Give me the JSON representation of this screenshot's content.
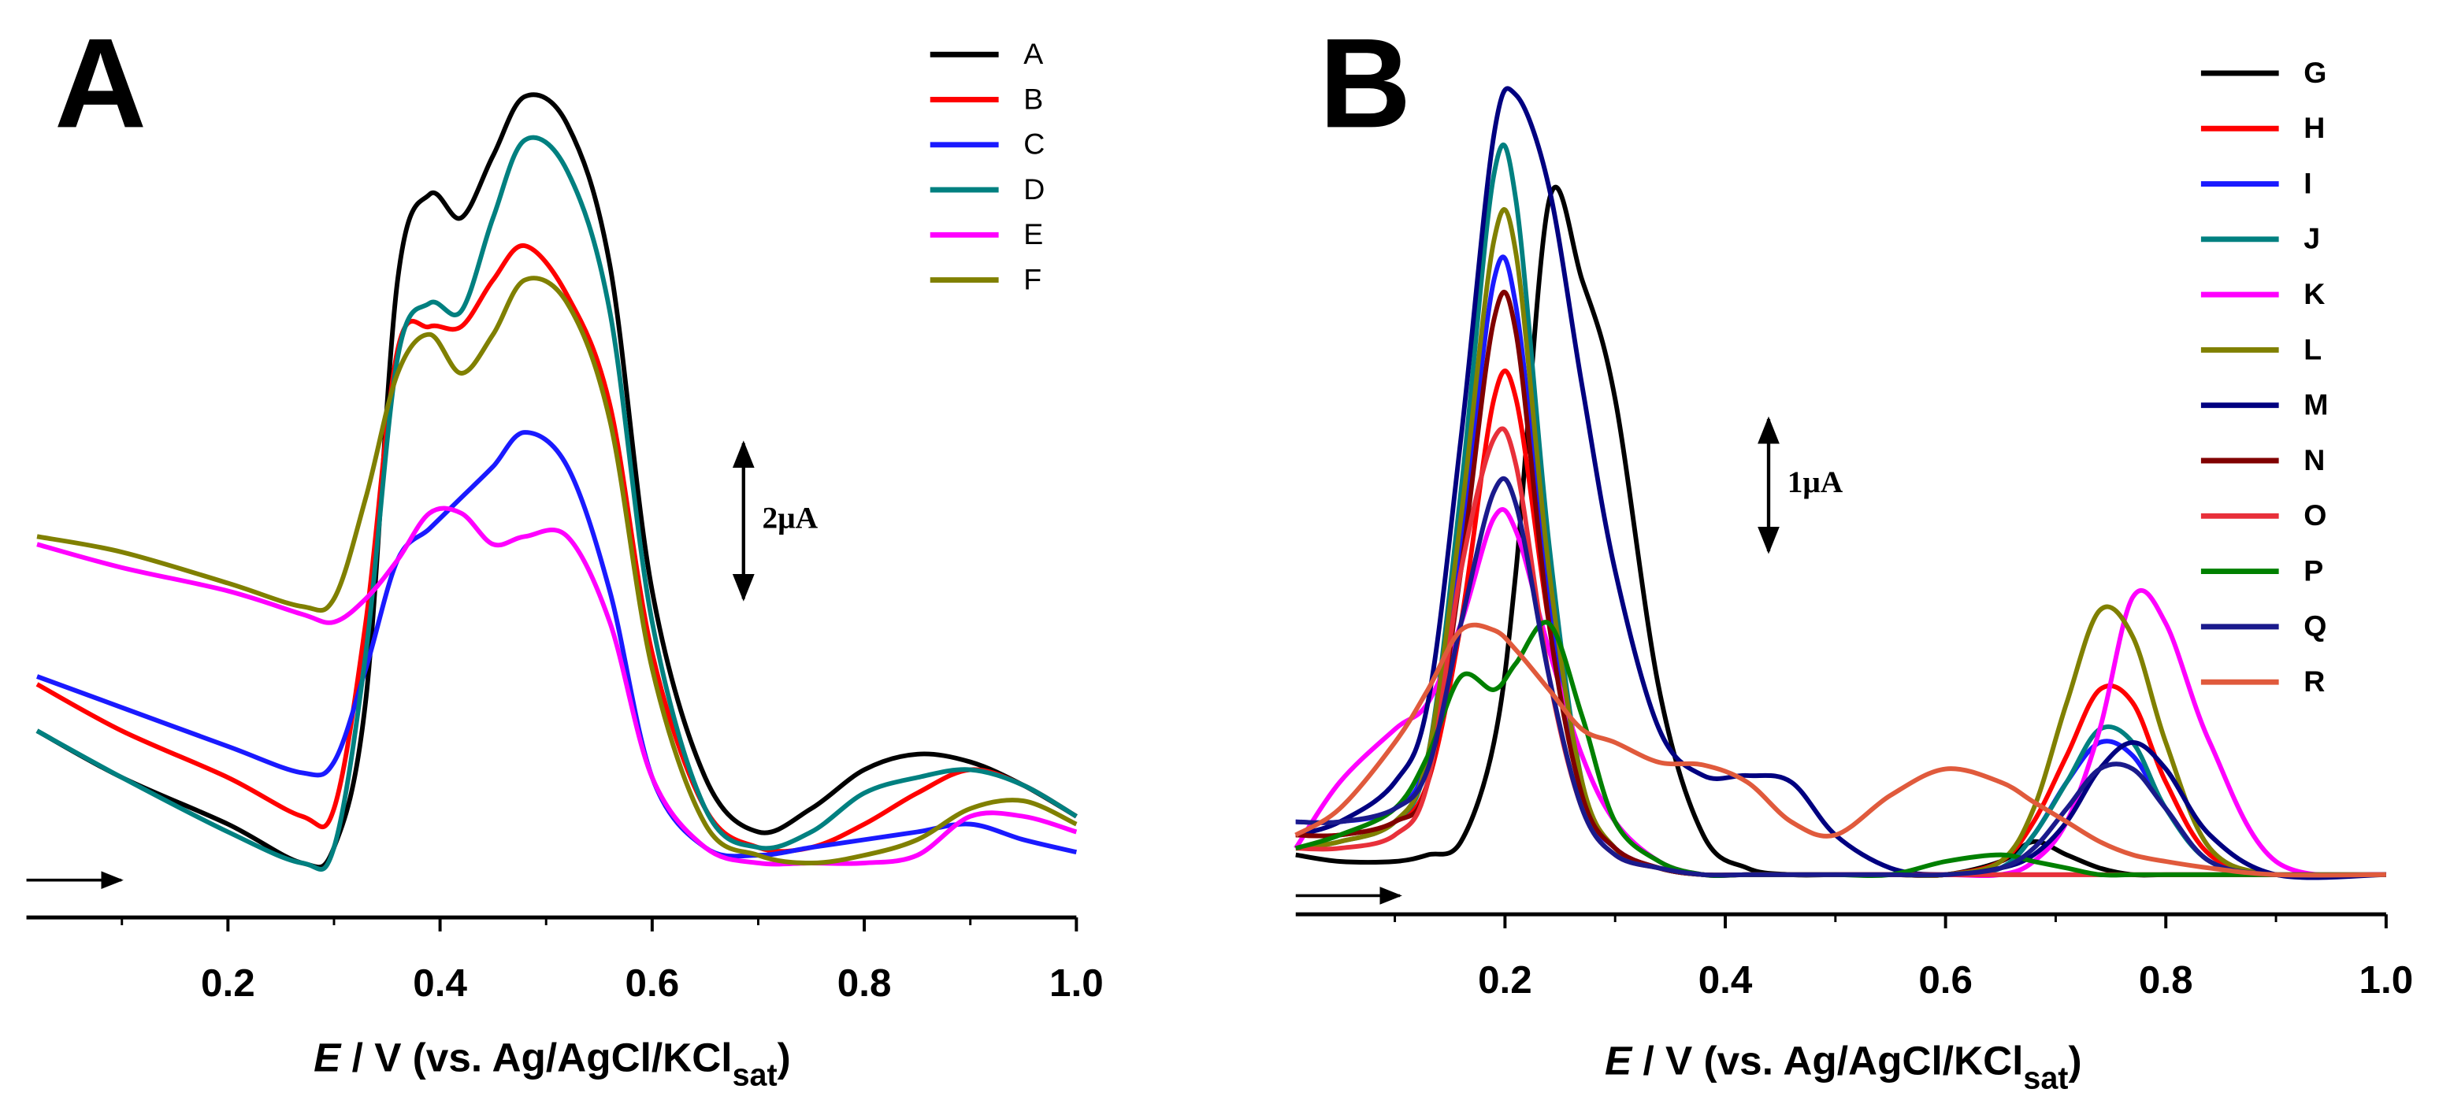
{
  "chart_data": [
    {
      "type": "line",
      "panel_label": "A",
      "x": [
        0.02,
        0.1,
        0.2,
        0.27,
        0.3,
        0.33,
        0.36,
        0.39,
        0.42,
        0.45,
        0.48,
        0.52,
        0.56,
        0.6,
        0.65,
        0.7,
        0.75,
        0.8,
        0.85,
        0.9,
        0.95,
        1.0
      ],
      "series": [
        {
          "name": "A",
          "color": "#000000",
          "values": [
            2.4,
            1.8,
            1.2,
            0.7,
            0.9,
            2.8,
            8.2,
            9.3,
            9.0,
            9.8,
            10.56,
            10.2,
            8.4,
            4.2,
            1.8,
            1.1,
            1.4,
            1.9,
            2.1,
            2.0,
            1.7,
            1.3
          ]
        },
        {
          "name": "B",
          "color": "#ff0000",
          "values": [
            3.0,
            2.4,
            1.8,
            1.3,
            1.4,
            3.8,
            7.3,
            7.6,
            7.6,
            8.2,
            8.64,
            8.0,
            6.6,
            3.4,
            1.4,
            0.9,
            0.9,
            1.2,
            1.6,
            1.9,
            1.7,
            1.3
          ]
        },
        {
          "name": "C",
          "color": "#1a1aff",
          "values": [
            3.1,
            2.7,
            2.2,
            1.86,
            2.0,
            3.2,
            4.6,
            5.0,
            5.4,
            5.8,
            6.24,
            5.8,
            4.2,
            1.8,
            0.9,
            0.8,
            0.9,
            1.0,
            1.1,
            1.2,
            1.0,
            0.84
          ]
        },
        {
          "name": "D",
          "color": "#008080",
          "values": [
            2.4,
            1.8,
            1.1,
            0.7,
            0.9,
            3.4,
            7.2,
            7.9,
            7.8,
            9.0,
            10.0,
            9.6,
            7.8,
            3.8,
            1.4,
            0.9,
            1.1,
            1.6,
            1.8,
            1.9,
            1.7,
            1.3
          ]
        },
        {
          "name": "E",
          "color": "#ff00ff",
          "values": [
            4.8,
            4.5,
            4.2,
            3.9,
            3.8,
            4.1,
            4.6,
            5.2,
            5.2,
            4.8,
            4.9,
            4.9,
            3.8,
            1.8,
            0.9,
            0.7,
            0.7,
            0.7,
            0.8,
            1.3,
            1.3,
            1.1
          ]
        },
        {
          "name": "F",
          "color": "#808000",
          "values": [
            4.9,
            4.7,
            4.3,
            4.0,
            4.1,
            5.4,
            7.0,
            7.5,
            7.0,
            7.5,
            8.2,
            7.9,
            6.4,
            3.2,
            1.2,
            0.8,
            0.7,
            0.8,
            1.0,
            1.4,
            1.5,
            1.2
          ]
        }
      ],
      "xlim": [
        0.01,
        1.0
      ],
      "ylim": [
        0,
        11
      ],
      "xticks": [
        0.2,
        0.4,
        0.6,
        0.8,
        {
          "value": 1.0,
          "label": "1.0"
        }
      ],
      "minor_xticks": [
        0.1,
        0.3,
        0.5,
        0.7,
        0.9
      ],
      "xlabel": [
        "E",
        " / V (vs. Ag/AgCl/KCl",
        "sat",
        ")"
      ],
      "scale_bar": {
        "value": 2,
        "label": "2μA"
      },
      "legend": "upper right"
    },
    {
      "type": "line",
      "panel_label": "B",
      "x": [
        0.01,
        0.05,
        0.1,
        0.13,
        0.16,
        0.19,
        0.21,
        0.24,
        0.27,
        0.3,
        0.34,
        0.38,
        0.42,
        0.46,
        0.5,
        0.55,
        0.6,
        0.65,
        0.68,
        0.71,
        0.74,
        0.77,
        0.8,
        0.84,
        0.9,
        1.0
      ],
      "series": [
        {
          "name": "G",
          "color": "#000000",
          "values": [
            0.45,
            0.4,
            0.4,
            0.45,
            0.55,
            1.3,
            2.6,
            5.4,
            4.8,
            3.9,
            1.7,
            0.6,
            0.35,
            0.3,
            0.3,
            0.3,
            0.3,
            0.4,
            0.55,
            0.45,
            0.35,
            0.3,
            0.3,
            0.3,
            0.3,
            0.3
          ]
        },
        {
          "name": "H",
          "color": "#ff0000",
          "values": [
            0.6,
            0.6,
            0.7,
            1.0,
            2.2,
            3.9,
            3.9,
            2.2,
            0.9,
            0.5,
            0.35,
            0.3,
            0.3,
            0.3,
            0.3,
            0.3,
            0.3,
            0.4,
            0.7,
            1.2,
            1.7,
            1.6,
            1.0,
            0.45,
            0.3,
            0.3
          ]
        },
        {
          "name": "I",
          "color": "#1a1aff",
          "values": [
            0.7,
            0.7,
            0.8,
            1.2,
            2.8,
            4.8,
            4.6,
            2.4,
            0.9,
            0.5,
            0.35,
            0.3,
            0.3,
            0.3,
            0.3,
            0.3,
            0.3,
            0.35,
            0.6,
            1.0,
            1.3,
            1.2,
            0.8,
            0.4,
            0.3,
            0.3
          ]
        },
        {
          "name": "J",
          "color": "#008080",
          "values": [
            0.5,
            0.55,
            0.7,
            1.2,
            3.2,
            5.6,
            5.4,
            2.8,
            1.0,
            0.5,
            0.35,
            0.3,
            0.3,
            0.3,
            0.3,
            0.3,
            0.3,
            0.35,
            0.6,
            1.0,
            1.4,
            1.3,
            0.8,
            0.4,
            0.3,
            0.3
          ]
        },
        {
          "name": "K",
          "color": "#ff00ff",
          "values": [
            0.5,
            1.0,
            1.4,
            1.6,
            2.2,
            3.0,
            2.9,
            2.0,
            1.2,
            0.7,
            0.4,
            0.3,
            0.3,
            0.3,
            0.3,
            0.3,
            0.3,
            0.3,
            0.4,
            0.7,
            1.4,
            2.4,
            2.2,
            1.3,
            0.4,
            0.3
          ]
        },
        {
          "name": "L",
          "color": "#808000",
          "values": [
            0.5,
            0.55,
            0.7,
            1.2,
            3.0,
            5.1,
            5.0,
            2.6,
            1.0,
            0.5,
            0.35,
            0.3,
            0.3,
            0.3,
            0.3,
            0.3,
            0.3,
            0.4,
            0.8,
            1.6,
            2.3,
            2.1,
            1.3,
            0.5,
            0.3,
            0.3
          ]
        },
        {
          "name": "M",
          "color": "#000080",
          "values": [
            0.6,
            0.7,
            1.0,
            1.6,
            3.6,
            5.9,
            6.2,
            5.5,
            4.0,
            2.6,
            1.4,
            1.05,
            1.05,
            1.0,
            0.6,
            0.35,
            0.3,
            0.35,
            0.45,
            0.7,
            1.1,
            1.3,
            1.1,
            0.6,
            0.3,
            0.3
          ]
        },
        {
          "name": "N",
          "color": "#800000",
          "values": [
            0.6,
            0.6,
            0.7,
            1.0,
            2.6,
            4.5,
            4.4,
            2.2,
            0.9,
            0.5,
            0.35,
            0.3,
            0.3,
            0.3,
            0.3,
            0.3,
            0.3,
            0.3,
            0.3,
            0.3,
            0.3,
            0.3,
            0.3,
            0.3,
            0.3,
            0.3
          ]
        },
        {
          "name": "O",
          "color": "#e8303a",
          "values": [
            0.5,
            0.5,
            0.6,
            1.0,
            2.6,
            3.6,
            3.4,
            1.8,
            0.8,
            0.45,
            0.35,
            0.3,
            0.3,
            0.3,
            0.3,
            0.3,
            0.3,
            0.3,
            0.3,
            0.3,
            0.3,
            0.3,
            0.3,
            0.3,
            0.3,
            0.3
          ]
        },
        {
          "name": "P",
          "color": "#008000",
          "values": [
            0.5,
            0.6,
            0.8,
            1.2,
            1.8,
            1.7,
            1.9,
            2.2,
            1.5,
            0.7,
            0.4,
            0.3,
            0.3,
            0.3,
            0.3,
            0.3,
            0.4,
            0.45,
            0.4,
            0.35,
            0.3,
            0.3,
            0.3,
            0.3,
            0.3,
            0.3
          ]
        },
        {
          "name": "Q",
          "color": "#1a1a8c",
          "values": [
            0.7,
            0.7,
            0.8,
            1.1,
            2.2,
            3.2,
            3.1,
            1.8,
            0.8,
            0.45,
            0.35,
            0.3,
            0.3,
            0.3,
            0.3,
            0.3,
            0.3,
            0.35,
            0.5,
            0.8,
            1.1,
            1.1,
            0.8,
            0.4,
            0.3,
            0.3
          ]
        },
        {
          "name": "R",
          "color": "#e05a3c",
          "values": [
            0.6,
            0.8,
            1.3,
            1.7,
            2.15,
            2.15,
            2.0,
            1.7,
            1.4,
            1.3,
            1.15,
            1.13,
            1.0,
            0.7,
            0.6,
            0.9,
            1.1,
            1.0,
            0.85,
            0.7,
            0.55,
            0.45,
            0.4,
            0.35,
            0.3,
            0.3
          ]
        }
      ],
      "xlim": [
        0.01,
        1.0
      ],
      "ylim": [
        0,
        6.5
      ],
      "xticks": [
        0.2,
        0.4,
        0.6,
        0.8,
        {
          "value": 1.0,
          "label": "1.0"
        }
      ],
      "minor_xticks": [
        0.1,
        0.3,
        0.5,
        0.7,
        0.9
      ],
      "xlabel": [
        "E",
        " / V (vs. Ag/AgCl/KCl",
        "sat",
        ")"
      ],
      "scale_bar": {
        "value": 1,
        "label": "1μA"
      },
      "legend": "upper right"
    }
  ]
}
